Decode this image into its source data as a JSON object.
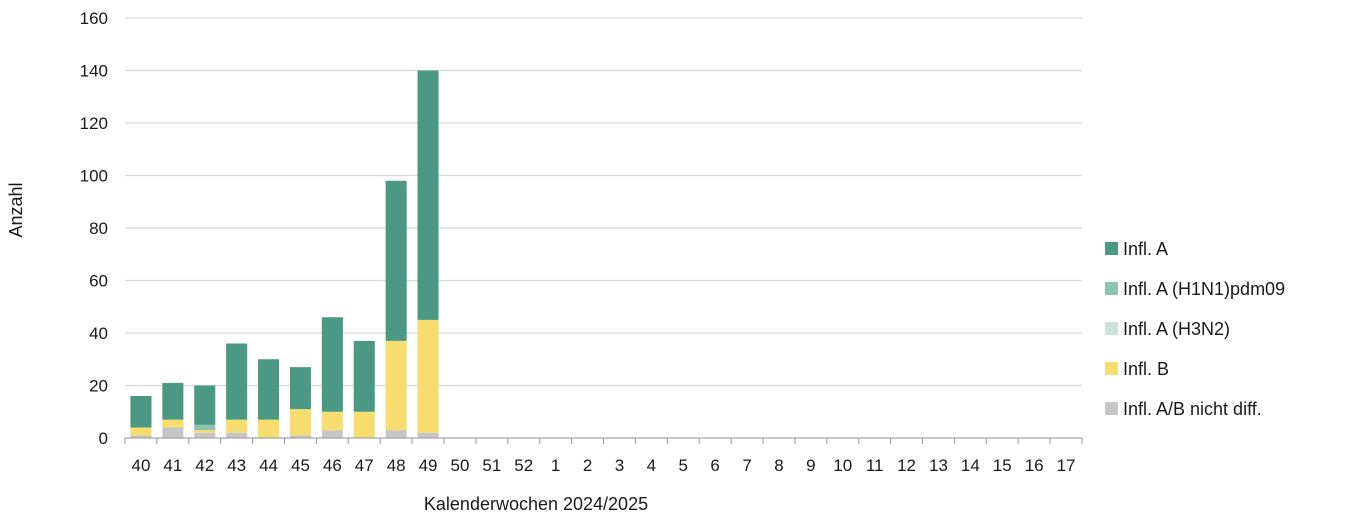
{
  "chart_data": {
    "type": "bar",
    "stacked": true,
    "title": "",
    "xlabel": "Kalenderwochen 2024/2025",
    "ylabel": "Anzahl",
    "ylim": [
      0,
      160
    ],
    "yticks": [
      0,
      20,
      40,
      60,
      80,
      100,
      120,
      140,
      160
    ],
    "grid": "horizontal",
    "legend_position": "right",
    "categories": [
      "40",
      "41",
      "42",
      "43",
      "44",
      "45",
      "46",
      "47",
      "48",
      "49",
      "50",
      "51",
      "52",
      "1",
      "2",
      "3",
      "4",
      "5",
      "6",
      "7",
      "8",
      "9",
      "10",
      "11",
      "12",
      "13",
      "14",
      "15",
      "16",
      "17"
    ],
    "series": [
      {
        "name": "Infl. A/B nicht diff.",
        "color": "#c6c6c6",
        "values": [
          1,
          4,
          2,
          2,
          0,
          1,
          3,
          0,
          3,
          2,
          0,
          0,
          0,
          0,
          0,
          0,
          0,
          0,
          0,
          0,
          0,
          0,
          0,
          0,
          0,
          0,
          0,
          0,
          0,
          0
        ]
      },
      {
        "name": "Infl. B",
        "color": "#f7dc6f",
        "values": [
          3,
          3,
          1,
          5,
          7,
          10,
          7,
          10,
          34,
          43,
          0,
          0,
          0,
          0,
          0,
          0,
          0,
          0,
          0,
          0,
          0,
          0,
          0,
          0,
          0,
          0,
          0,
          0,
          0,
          0
        ]
      },
      {
        "name": "Infl. A (H3N2)",
        "color": "#c9e3d8",
        "values": [
          0,
          0,
          0,
          0,
          0,
          0,
          0,
          0,
          0,
          0,
          0,
          0,
          0,
          0,
          0,
          0,
          0,
          0,
          0,
          0,
          0,
          0,
          0,
          0,
          0,
          0,
          0,
          0,
          0,
          0
        ]
      },
      {
        "name": "Infl. A (H1N1)pdm09",
        "color": "#8fc4b1",
        "values": [
          0,
          0,
          2,
          0,
          0,
          0,
          0,
          0,
          0,
          0,
          0,
          0,
          0,
          0,
          0,
          0,
          0,
          0,
          0,
          0,
          0,
          0,
          0,
          0,
          0,
          0,
          0,
          0,
          0,
          0
        ]
      },
      {
        "name": "Infl. A",
        "color": "#4b9984",
        "values": [
          12,
          14,
          15,
          29,
          23,
          16,
          36,
          27,
          61,
          95,
          0,
          0,
          0,
          0,
          0,
          0,
          0,
          0,
          0,
          0,
          0,
          0,
          0,
          0,
          0,
          0,
          0,
          0,
          0,
          0
        ]
      }
    ],
    "legend_order": [
      "Infl. A",
      "Infl. A (H1N1)pdm09",
      "Infl. A (H3N2)",
      "Infl. B",
      "Infl. A/B nicht diff."
    ]
  }
}
